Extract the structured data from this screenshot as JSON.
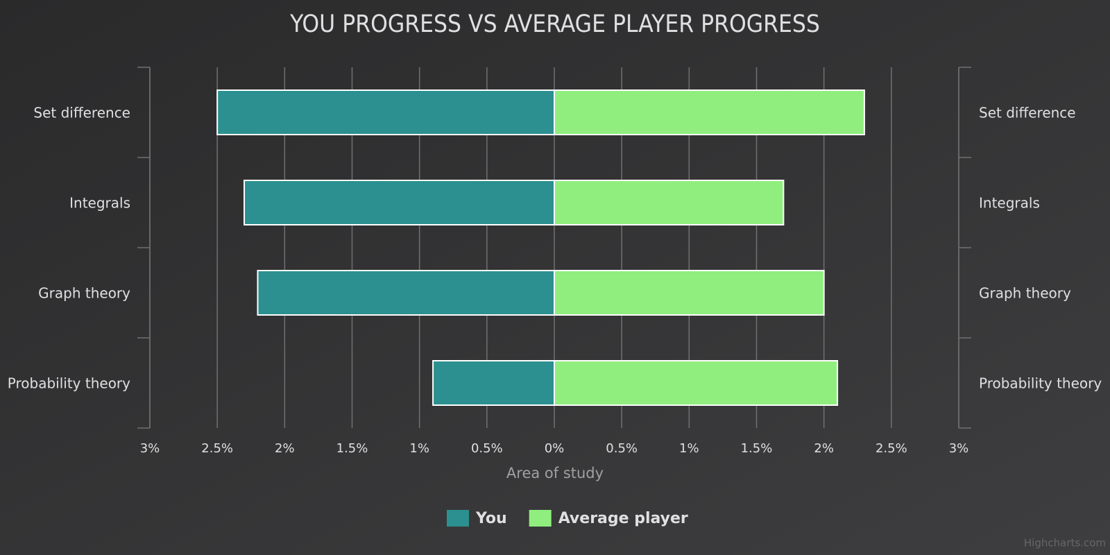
{
  "chart_data": {
    "type": "pyramid-bar",
    "title": "YOU PROGRESS VS AVERAGE PLAYER PROGRESS",
    "axis_title": "Area of study",
    "categories": [
      "Set difference",
      "Integrals",
      "Graph theory",
      "Probability theory"
    ],
    "series": [
      {
        "name": "You",
        "color": "#2b908f",
        "values": [
          -2.5,
          -2.3,
          -2.2,
          -0.9
        ]
      },
      {
        "name": "Average player",
        "color": "#90ee7e",
        "values": [
          2.3,
          1.7,
          2.0,
          2.1
        ]
      }
    ],
    "xlim": [
      -3,
      3
    ],
    "xticks": [
      {
        "value": -3,
        "label": "3%"
      },
      {
        "value": -2.5,
        "label": "2.5%"
      },
      {
        "value": -2,
        "label": "2%"
      },
      {
        "value": -1.5,
        "label": "1.5%"
      },
      {
        "value": -1,
        "label": "1%"
      },
      {
        "value": -0.5,
        "label": "0.5%"
      },
      {
        "value": 0,
        "label": "0%"
      },
      {
        "value": 0.5,
        "label": "0.5%"
      },
      {
        "value": 1,
        "label": "1%"
      },
      {
        "value": 1.5,
        "label": "1.5%"
      },
      {
        "value": 2,
        "label": "2%"
      },
      {
        "value": 2.5,
        "label": "2.5%"
      },
      {
        "value": 3,
        "label": "3%"
      }
    ],
    "grid": true,
    "legend_position": "bottom",
    "credits": "Highcharts.com"
  }
}
